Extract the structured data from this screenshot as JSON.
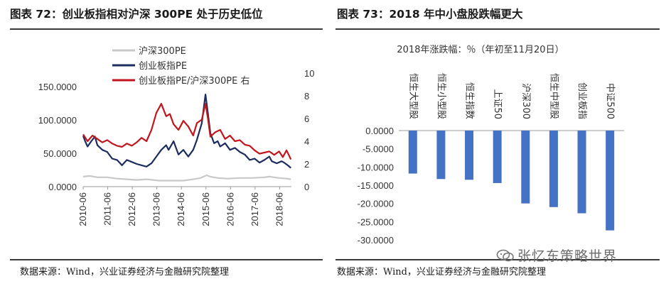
{
  "left": {
    "title": "图表 72：创业板指相对沪深 300PE 处于历史低位",
    "source": "数据来源：Wind，兴业证券经济与金融研究院整理"
  },
  "right": {
    "title": "图表 73：2018 年中小盘股跌幅更大",
    "source": "数据来源：Wind，兴业证券经济与金融研究院整理"
  },
  "watermark": "张忆东策略世界",
  "colors": {
    "hs300": "#c8c8c8",
    "cyb": "#1b2c5e",
    "ratio": "#c0161c",
    "bar": "#4472c4"
  },
  "chart_data": [
    {
      "type": "line",
      "legend": [
        "沪深300PE",
        "创业板指PE",
        "创业板指PE/沪深300PE 右"
      ],
      "y_left_ticks": [
        "150.0000",
        "100.0000",
        "50.0000",
        "0.0000"
      ],
      "y_left_range": [
        0,
        170
      ],
      "y_right_ticks": [
        "10",
        "8",
        "6",
        "4",
        "2",
        "0"
      ],
      "y_right_range": [
        0,
        10
      ],
      "x_ticks": [
        "2010-06",
        "2011-06",
        "2012-06",
        "2013-06",
        "2014-06",
        "2015-06",
        "2016-06",
        "2017-06",
        "2018-06"
      ],
      "x_range": [
        2010.42,
        2018.9
      ],
      "series": [
        {
          "name": "沪深300PE",
          "axis": "left",
          "x": [
            2010.42,
            2010.7,
            2011.0,
            2011.4,
            2011.8,
            2012.2,
            2012.6,
            2013.0,
            2013.5,
            2014.0,
            2014.5,
            2014.9,
            2015.2,
            2015.45,
            2015.6,
            2015.9,
            2016.3,
            2016.8,
            2017.3,
            2017.8,
            2018.0,
            2018.4,
            2018.7,
            2018.88
          ],
          "y": [
            15,
            16,
            14,
            14,
            12,
            11,
            10,
            11,
            9,
            9,
            9,
            11,
            13,
            17,
            15,
            13,
            12,
            13,
            13,
            14,
            15,
            13,
            12,
            11
          ]
        },
        {
          "name": "创业板指PE",
          "axis": "left",
          "x": [
            2010.42,
            2010.5,
            2010.6,
            2010.75,
            2010.9,
            2011.0,
            2011.2,
            2011.4,
            2011.6,
            2011.8,
            2012.0,
            2012.2,
            2012.4,
            2012.6,
            2012.8,
            2013.0,
            2013.2,
            2013.4,
            2013.6,
            2013.8,
            2013.9,
            2014.1,
            2014.3,
            2014.5,
            2014.7,
            2014.9,
            2015.05,
            2015.25,
            2015.4,
            2015.5,
            2015.6,
            2015.75,
            2015.9,
            2016.0,
            2016.2,
            2016.4,
            2016.6,
            2016.8,
            2017.0,
            2017.2,
            2017.4,
            2017.6,
            2017.8,
            2018.0,
            2018.1,
            2018.3,
            2018.5,
            2018.6,
            2018.75,
            2018.88
          ],
          "y": [
            76,
            68,
            60,
            68,
            75,
            62,
            55,
            52,
            42,
            40,
            32,
            40,
            37,
            34,
            32,
            30,
            35,
            45,
            55,
            62,
            55,
            68,
            48,
            55,
            45,
            55,
            70,
            95,
            138,
            110,
            80,
            65,
            68,
            60,
            65,
            55,
            58,
            52,
            48,
            40,
            42,
            36,
            40,
            45,
            38,
            35,
            38,
            36,
            32,
            28
          ]
        },
        {
          "name": "创业板指PE/沪深300PE 右",
          "axis": "right",
          "x": [
            2010.42,
            2010.6,
            2010.8,
            2011.0,
            2011.2,
            2011.4,
            2011.6,
            2011.8,
            2012.0,
            2012.2,
            2012.4,
            2012.6,
            2012.8,
            2013.0,
            2013.2,
            2013.4,
            2013.6,
            2013.8,
            2013.95,
            2014.1,
            2014.3,
            2014.5,
            2014.7,
            2014.9,
            2015.05,
            2015.25,
            2015.4,
            2015.5,
            2015.6,
            2015.8,
            2016.0,
            2016.2,
            2016.4,
            2016.6,
            2016.8,
            2017.0,
            2017.2,
            2017.4,
            2017.6,
            2017.8,
            2018.0,
            2018.2,
            2018.4,
            2018.55,
            2018.7,
            2018.88
          ],
          "y": [
            4.6,
            4.0,
            4.5,
            4.2,
            3.9,
            4.1,
            3.8,
            3.6,
            3.5,
            3.8,
            3.6,
            3.9,
            4.3,
            4.0,
            5.0,
            6.5,
            7.3,
            6.2,
            6.4,
            5.5,
            5.0,
            5.8,
            5.3,
            4.5,
            5.6,
            5.9,
            7.3,
            6.0,
            4.4,
            4.8,
            5.0,
            4.2,
            4.5,
            4.0,
            4.1,
            3.7,
            3.6,
            3.2,
            2.9,
            3.0,
            3.1,
            2.8,
            3.1,
            2.6,
            3.2,
            2.4
          ]
        }
      ]
    },
    {
      "type": "bar",
      "title": "2018年涨跌幅：％（年初至11月20日）",
      "categories": [
        "恒生大型股",
        "恒生小型股",
        "恒生指数",
        "上证50",
        "沪深300",
        "恒生中型股",
        "创业板指",
        "中证500"
      ],
      "values": [
        -11.8,
        -13.3,
        -13.5,
        -14.4,
        -20.0,
        -21.0,
        -22.7,
        -27.4
      ],
      "y_ticks": [
        "0.0000",
        "-5.0000",
        "-10.0000",
        "-15.0000",
        "-20.0000",
        "-25.0000",
        "-30.0000"
      ],
      "ylim": [
        -30,
        0
      ]
    }
  ]
}
